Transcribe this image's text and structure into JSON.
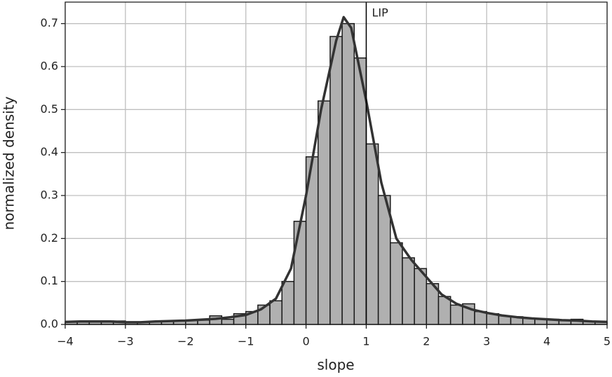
{
  "chart_data": {
    "type": "histogram",
    "x_label": "slope",
    "y_label": "normalized density",
    "bins": [
      -4.0,
      -3.8,
      -3.6,
      -3.4,
      -3.2,
      -3.0,
      -2.8,
      -2.6,
      -2.4,
      -2.2,
      -2.0,
      -1.8,
      -1.6,
      -1.4,
      -1.2,
      -1.0,
      -0.8,
      -0.6,
      -0.4,
      -0.2,
      0.0,
      0.2,
      0.4,
      0.6,
      0.8,
      1.0,
      1.2,
      1.4,
      1.6,
      1.8,
      2.0,
      2.2,
      2.4,
      2.6,
      2.8,
      3.0,
      3.2,
      3.4,
      3.6,
      3.8,
      4.0,
      4.2,
      4.4,
      4.6,
      4.8,
      5.0
    ],
    "values": [
      0.006,
      0.006,
      0.007,
      0.008,
      0.008,
      0.005,
      0.005,
      0.006,
      0.007,
      0.008,
      0.01,
      0.01,
      0.02,
      0.012,
      0.025,
      0.03,
      0.045,
      0.055,
      0.1,
      0.24,
      0.39,
      0.52,
      0.67,
      0.7,
      0.62,
      0.42,
      0.3,
      0.19,
      0.155,
      0.13,
      0.095,
      0.065,
      0.045,
      0.048,
      0.03,
      0.025,
      0.02,
      0.018,
      0.015,
      0.012,
      0.012,
      0.01,
      0.012,
      0.007,
      0.006
    ],
    "color": "#b0b0b0",
    "edge_color": "#1a1a1a",
    "kde": {
      "color": "#333333",
      "x": [
        -4,
        -3.75,
        -3.5,
        -3.25,
        -3,
        -2.75,
        -2.5,
        -2.25,
        -2,
        -1.75,
        -1.5,
        -1.25,
        -1,
        -0.75,
        -0.5,
        -0.25,
        0,
        0.25,
        0.5,
        0.625,
        0.75,
        1,
        1.25,
        1.5,
        1.75,
        2,
        2.25,
        2.5,
        2.75,
        3,
        3.25,
        3.5,
        3.75,
        4,
        4.25,
        4.5,
        4.75,
        5
      ],
      "values": [
        0.006,
        0.007,
        0.007,
        0.007,
        0.005,
        0.005,
        0.007,
        0.008,
        0.009,
        0.011,
        0.013,
        0.017,
        0.022,
        0.035,
        0.06,
        0.13,
        0.3,
        0.5,
        0.66,
        0.715,
        0.69,
        0.52,
        0.33,
        0.2,
        0.15,
        0.11,
        0.07,
        0.048,
        0.035,
        0.027,
        0.021,
        0.017,
        0.014,
        0.012,
        0.01,
        0.009,
        0.007,
        0.006
      ]
    },
    "vline": {
      "x": 1,
      "label": "LIP",
      "color": "#000000"
    },
    "xlim": [
      -4,
      5
    ],
    "ylim": [
      0,
      0.75
    ],
    "xticks": [
      {
        "value": -4,
        "label": "−4"
      },
      {
        "value": -3,
        "label": "−3"
      },
      {
        "value": -2,
        "label": "−2"
      },
      {
        "value": -1,
        "label": "−1"
      },
      0,
      1,
      2,
      3,
      4,
      5
    ],
    "yticks": [
      {
        "value": 0,
        "label": "0.0"
      },
      0.1,
      0.2,
      0.3,
      0.4,
      0.5,
      0.6,
      0.7
    ],
    "grid": true
  }
}
